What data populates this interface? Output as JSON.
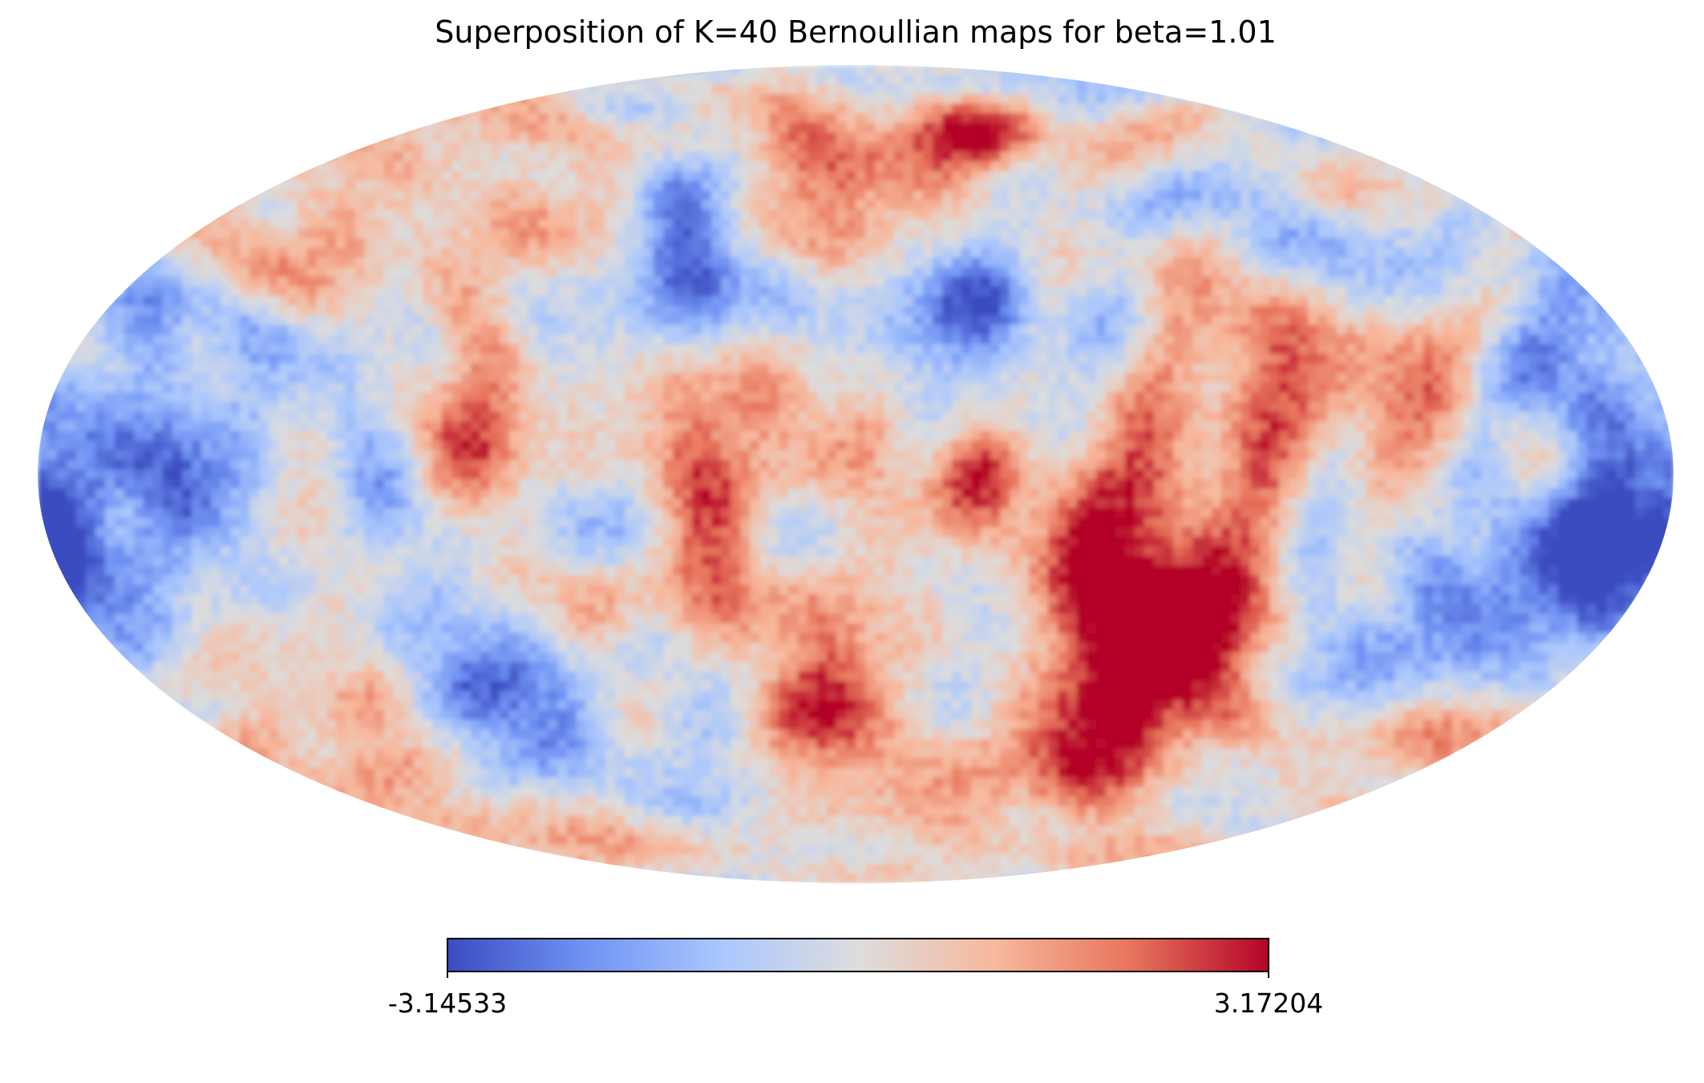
{
  "chart_data": {
    "type": "heatmap",
    "subtype": "mollweide-sky-map",
    "title": "Superposition of K=40 Bernoullian maps for beta=1.01",
    "projection": "Mollweide",
    "K": 40,
    "beta": 1.01,
    "colormap": "coolwarm",
    "color_stops": [
      "#3b4cc0",
      "#6f92f3",
      "#aac7fd",
      "#dddddd",
      "#f7b89c",
      "#e7745b",
      "#b40426"
    ],
    "colorbar": {
      "orientation": "horizontal",
      "min": -3.14533,
      "max": 3.17204,
      "min_label": "-3.14533",
      "max_label": "3.17204"
    },
    "xlabel": "",
    "ylabel": "",
    "grid": false,
    "features": [
      {
        "lon_deg": -25,
        "lat_deg": -15,
        "value": 2.6,
        "radius_deg": 16
      },
      {
        "lon_deg": 50,
        "lat_deg": 3,
        "value": 2.3,
        "radius_deg": 22
      },
      {
        "lon_deg": 80,
        "lat_deg": -32,
        "value": 2.9,
        "radius_deg": 14
      },
      {
        "lon_deg": 72,
        "lat_deg": -40,
        "value": 2.5,
        "radius_deg": 18
      },
      {
        "lon_deg": 35,
        "lat_deg": 68,
        "value": 2.8,
        "radius_deg": 9
      },
      {
        "lon_deg": -15,
        "lat_deg": 55,
        "value": 1.9,
        "radius_deg": 18
      },
      {
        "lon_deg": 5,
        "lat_deg": 52,
        "value": 1.7,
        "radius_deg": 16
      },
      {
        "lon_deg": -10,
        "lat_deg": -60,
        "value": 2.1,
        "radius_deg": 14
      },
      {
        "lon_deg": 95,
        "lat_deg": 30,
        "value": 1.8,
        "radius_deg": 14
      },
      {
        "lon_deg": 120,
        "lat_deg": 20,
        "value": 1.6,
        "radius_deg": 14
      },
      {
        "lon_deg": -150,
        "lat_deg": 38,
        "value": 1.4,
        "radius_deg": 14
      },
      {
        "lon_deg": -100,
        "lat_deg": 38,
        "value": 1.2,
        "radius_deg": 12
      },
      {
        "lon_deg": 150,
        "lat_deg": 55,
        "value": 1.5,
        "radius_deg": 16
      },
      {
        "lon_deg": -60,
        "lat_deg": -20,
        "value": 1.5,
        "radius_deg": 14
      },
      {
        "lon_deg": 165,
        "lat_deg": -45,
        "value": 1.3,
        "radius_deg": 14
      },
      {
        "lon_deg": -135,
        "lat_deg": -32,
        "value": 1.1,
        "radius_deg": 12
      },
      {
        "lon_deg": 10,
        "lat_deg": -35,
        "value": 1.5,
        "radius_deg": 12
      },
      {
        "lon_deg": -75,
        "lat_deg": 62,
        "value": 1.1,
        "radius_deg": 12
      },
      {
        "lon_deg": -160,
        "lat_deg": 5,
        "value": 1.1,
        "radius_deg": 10
      },
      {
        "lon_deg": -40,
        "lat_deg": 10,
        "value": 1.0,
        "radius_deg": 12
      },
      {
        "lon_deg": -155,
        "lat_deg": 3,
        "value": -2.4,
        "radius_deg": 16
      },
      {
        "lon_deg": -130,
        "lat_deg": 18,
        "value": -1.9,
        "radius_deg": 18
      },
      {
        "lon_deg": -40,
        "lat_deg": 40,
        "value": -2.5,
        "radius_deg": 14
      },
      {
        "lon_deg": 25,
        "lat_deg": 38,
        "value": -2.4,
        "radius_deg": 18
      },
      {
        "lon_deg": 40,
        "lat_deg": 25,
        "value": -1.9,
        "radius_deg": 14
      },
      {
        "lon_deg": -55,
        "lat_deg": -8,
        "value": -2.2,
        "radius_deg": 12
      },
      {
        "lon_deg": 160,
        "lat_deg": -22,
        "value": -2.6,
        "radius_deg": 14
      },
      {
        "lon_deg": 175,
        "lat_deg": -10,
        "value": -2.3,
        "radius_deg": 12
      },
      {
        "lon_deg": -175,
        "lat_deg": -15,
        "value": -2.1,
        "radius_deg": 12
      },
      {
        "lon_deg": 115,
        "lat_deg": -20,
        "value": -1.9,
        "radius_deg": 14
      },
      {
        "lon_deg": 120,
        "lat_deg": 45,
        "value": -1.6,
        "radius_deg": 12
      },
      {
        "lon_deg": -100,
        "lat_deg": -40,
        "value": -1.7,
        "radius_deg": 16
      },
      {
        "lon_deg": -15,
        "lat_deg": 72,
        "value": -1.6,
        "radius_deg": 12
      },
      {
        "lon_deg": 10,
        "lat_deg": 82,
        "value": -2.0,
        "radius_deg": 8
      },
      {
        "lon_deg": 160,
        "lat_deg": 10,
        "value": -1.9,
        "radius_deg": 12
      },
      {
        "lon_deg": -175,
        "lat_deg": 35,
        "value": -1.3,
        "radius_deg": 14
      },
      {
        "lon_deg": 30,
        "lat_deg": -25,
        "value": -1.5,
        "radius_deg": 12
      },
      {
        "lon_deg": -20,
        "lat_deg": -5,
        "value": -1.3,
        "radius_deg": 12
      }
    ]
  }
}
